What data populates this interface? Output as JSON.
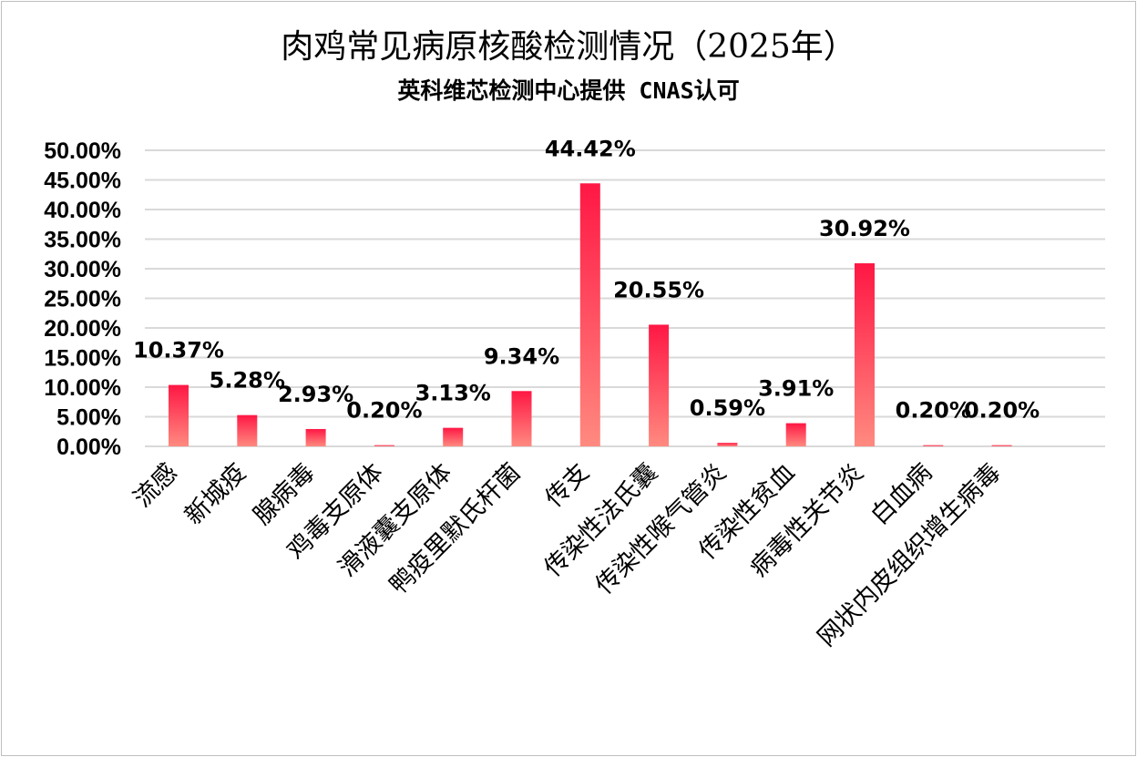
{
  "chart_data": {
    "type": "bar",
    "title": "肉鸡常见病原核酸检测情况（2025年）",
    "subtitle": "英科维芯检测中心提供 CNAS认可",
    "categories": [
      "流感",
      "新城疫",
      "腺病毒",
      "鸡毒支原体",
      "滑液囊支原体",
      "鸭疫里默氏杆菌",
      "传支",
      "传染性法氏囊",
      "传染性喉气管炎",
      "传染性贫血",
      "病毒性关节炎",
      "白血病",
      "网状内皮组织增生病毒"
    ],
    "values": [
      10.37,
      5.28,
      2.93,
      0.2,
      3.13,
      9.34,
      44.42,
      20.55,
      0.59,
      3.91,
      30.92,
      0.2,
      0.2
    ],
    "data_labels": [
      "10.37%",
      "5.28%",
      "2.93%",
      "0.20%",
      "3.13%",
      "9.34%",
      "44.42%",
      "20.55%",
      "0.59%",
      "3.91%",
      "30.92%",
      "0.20%",
      "0.20%"
    ],
    "y_ticks": [
      "0.00%",
      "5.00%",
      "10.00%",
      "15.00%",
      "20.00%",
      "25.00%",
      "30.00%",
      "35.00%",
      "40.00%",
      "45.00%",
      "50.00%"
    ],
    "ylim": [
      0,
      50
    ],
    "grid": true,
    "legend": "none",
    "colors": {
      "bar_top": "#ff1744",
      "bar_bottom": "#ff8a80",
      "grid": "#d9d9d9"
    }
  }
}
